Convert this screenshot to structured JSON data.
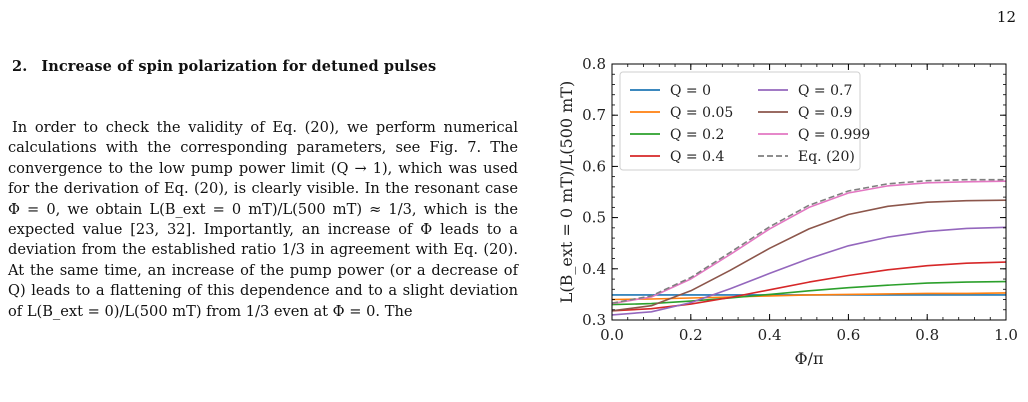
{
  "page": {
    "number": "12"
  },
  "section": {
    "number": "2.",
    "title": "Increase of spin polarization for detuned pulses"
  },
  "paragraph": "In order to check the validity of Eq. (20), we perform numerical calculations with the corresponding parameters, see Fig. 7. The convergence to the low pump power limit (Q → 1), which was used for the derivation of Eq. (20), is clearly visible. In the resonant case Φ = 0, we obtain L(B_ext = 0 mT)/L(500 mT) ≈ 1/3, which is the expected value [23, 32]. Importantly, an increase of Φ leads to a deviation from the established ratio 1/3 in agreement with Eq. (20). At the same time, an increase of the pump power (or a decrease of Q) leads to a flattening of this dependence and to a slight deviation of L(B_ext = 0)/L(500 mT) from 1/3 even at Φ = 0. The",
  "chart_data": {
    "type": "line",
    "xlabel": "Φ/π",
    "ylabel": "L(B_ext = 0 mT)/L(500 mT)",
    "xlim": [
      0,
      1
    ],
    "ylim": [
      0.3,
      0.8
    ],
    "xticks": [
      "0.0",
      "0.2",
      "0.4",
      "0.6",
      "0.8",
      "1.0"
    ],
    "yticks": [
      "0.3",
      "0.4",
      "0.5",
      "0.6",
      "0.7",
      "0.8"
    ],
    "grid": false,
    "legend_position": "top-left",
    "x": [
      0.0,
      0.1,
      0.2,
      0.3,
      0.4,
      0.5,
      0.6,
      0.7,
      0.8,
      0.9,
      1.0
    ],
    "series": [
      {
        "name": "Q = 0",
        "color": "#1f77b4",
        "dash": false,
        "values": [
          0.349,
          0.349,
          0.349,
          0.349,
          0.349,
          0.349,
          0.349,
          0.349,
          0.349,
          0.349,
          0.349
        ]
      },
      {
        "name": "Q = 0.05",
        "color": "#ff7f0e",
        "dash": false,
        "values": [
          0.34,
          0.341,
          0.343,
          0.345,
          0.347,
          0.349,
          0.35,
          0.351,
          0.352,
          0.352,
          0.353
        ]
      },
      {
        "name": "Q = 0.2",
        "color": "#2ca02c",
        "dash": false,
        "values": [
          0.33,
          0.332,
          0.337,
          0.343,
          0.35,
          0.357,
          0.363,
          0.368,
          0.372,
          0.374,
          0.375
        ]
      },
      {
        "name": "Q = 0.4",
        "color": "#d62728",
        "dash": false,
        "values": [
          0.318,
          0.322,
          0.331,
          0.344,
          0.359,
          0.374,
          0.387,
          0.398,
          0.406,
          0.411,
          0.413
        ]
      },
      {
        "name": "Q = 0.7",
        "color": "#9467bd",
        "dash": false,
        "values": [
          0.31,
          0.316,
          0.334,
          0.361,
          0.391,
          0.42,
          0.445,
          0.462,
          0.473,
          0.479,
          0.481
        ]
      },
      {
        "name": "Q = 0.9",
        "color": "#8c564b",
        "dash": false,
        "values": [
          0.318,
          0.328,
          0.357,
          0.397,
          0.44,
          0.478,
          0.506,
          0.522,
          0.53,
          0.533,
          0.534
        ]
      },
      {
        "name": "Q = 0.999",
        "color": "#e377c2",
        "dash": false,
        "values": [
          0.332,
          0.345,
          0.38,
          0.428,
          0.478,
          0.52,
          0.548,
          0.562,
          0.568,
          0.57,
          0.571
        ]
      },
      {
        "name": "Eq. (20)",
        "color": "#7f7f7f",
        "dash": true,
        "values": [
          0.333,
          0.347,
          0.383,
          0.432,
          0.482,
          0.524,
          0.552,
          0.566,
          0.572,
          0.574,
          0.574
        ]
      }
    ]
  }
}
